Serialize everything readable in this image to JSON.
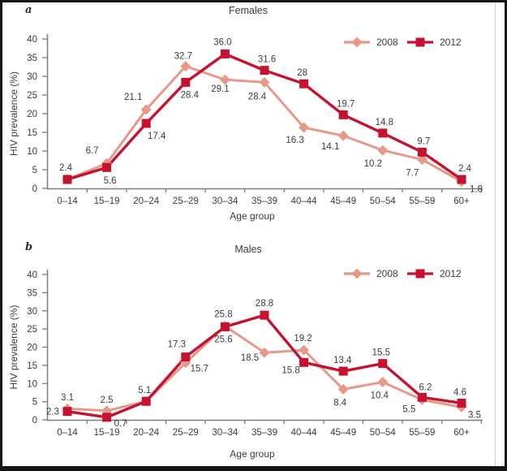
{
  "styles": {
    "background": "#ffffff",
    "frame_border_color": "#151515",
    "axis_color": "#7d7d7d",
    "text_color": "#3d3d3d",
    "series_2008_color": "#e79989",
    "series_2012_color": "#c41230"
  },
  "chart_data": [
    {
      "type": "line",
      "panel_letter": "a",
      "title": "Females",
      "xlabel": "Age group",
      "ylabel": "HIV prevalence (%)",
      "ylim": [
        0,
        40
      ],
      "ytick_step": 5,
      "grid": false,
      "legend_position": "top-right",
      "categories": [
        "0–14",
        "15–19",
        "20–24",
        "25–29",
        "30–34",
        "35–39",
        "40–44",
        "45–49",
        "50–54",
        "55–59",
        "60+"
      ],
      "series": [
        {
          "name": "2008",
          "marker": "diamond",
          "color": "#e79989",
          "values": [
            2.4,
            6.7,
            21.1,
            32.7,
            29.1,
            28.4,
            16.3,
            14.1,
            10.2,
            7.7,
            1.8
          ],
          "point_labels": [
            {
              "t": "2.4",
              "dx": -2,
              "dy": -15
            },
            {
              "t": "6.7",
              "dx": -18,
              "dy": -16
            },
            {
              "t": "21.1",
              "dx": -16,
              "dy": -16
            },
            {
              "t": "32.7",
              "dx": -3,
              "dy": -13
            },
            {
              "t": "29.1",
              "dx": -6,
              "dy": 11
            },
            {
              "t": "28.4",
              "dx": -9,
              "dy": 17
            },
            {
              "t": "16.3",
              "dx": -11,
              "dy": 15
            },
            {
              "t": "14.1",
              "dx": -16,
              "dy": 13
            },
            {
              "t": "10.2",
              "dx": -12,
              "dy": 16
            },
            {
              "t": "7.7",
              "dx": -12,
              "dy": 16
            },
            {
              "t": "1.8",
              "dx": 18,
              "dy": 9
            }
          ]
        },
        {
          "name": "2012",
          "marker": "square",
          "color": "#c41230",
          "values": [
            2.4,
            5.6,
            17.4,
            28.4,
            36.0,
            31.6,
            28,
            19.7,
            14.8,
            9.7,
            2.4
          ],
          "point_labels": [
            null,
            {
              "t": "5.6",
              "dx": 4,
              "dy": 16
            },
            {
              "t": "17.4",
              "dx": 13,
              "dy": 15
            },
            {
              "t": "28.4",
              "dx": 5,
              "dy": 15
            },
            {
              "t": "36.0",
              "dx": -3,
              "dy": -15
            },
            {
              "t": "31.6",
              "dx": 3,
              "dy": -14
            },
            {
              "t": "28",
              "dx": -2,
              "dy": -14
            },
            {
              "t": "19.7",
              "dx": 3,
              "dy": -14
            },
            {
              "t": "14.8",
              "dx": 2,
              "dy": -14
            },
            {
              "t": "9.7",
              "dx": 2,
              "dy": -14
            },
            {
              "t": "2.4",
              "dx": 4,
              "dy": -14
            }
          ]
        }
      ]
    },
    {
      "type": "line",
      "panel_letter": "b",
      "title": "Males",
      "xlabel": "Age group",
      "ylabel": "HIV prevalence (%)",
      "ylim": [
        0,
        40
      ],
      "ytick_step": 5,
      "grid": false,
      "legend_position": "top-right",
      "categories": [
        "0–14",
        "15–19",
        "20–24",
        "25–29",
        "30–34",
        "35–39",
        "40–44",
        "45–49",
        "50–54",
        "55–59",
        "60+"
      ],
      "series": [
        {
          "name": "2008",
          "marker": "diamond",
          "color": "#e79989",
          "values": [
            3.1,
            2.5,
            5.1,
            15.7,
            25.8,
            18.5,
            19.2,
            8.4,
            10.4,
            5.5,
            3.5
          ],
          "point_labels": [
            {
              "t": "3.1",
              "dx": 0,
              "dy": -14
            },
            {
              "t": "2.5",
              "dx": 0,
              "dy": -14
            },
            {
              "t": "5.1",
              "dx": -2,
              "dy": -14
            },
            {
              "t": "15.7",
              "dx": 17,
              "dy": 7
            },
            {
              "t": "25.8",
              "dx": -2,
              "dy": -15
            },
            {
              "t": "18.5",
              "dx": -18,
              "dy": 6
            },
            {
              "t": "19.2",
              "dx": -1,
              "dy": -15
            },
            {
              "t": "8.4",
              "dx": -4,
              "dy": 16
            },
            {
              "t": "10.4",
              "dx": -4,
              "dy": 16
            },
            {
              "t": "5.5",
              "dx": -16,
              "dy": 11
            },
            {
              "t": "3.5",
              "dx": 16,
              "dy": 9
            }
          ]
        },
        {
          "name": "2012",
          "marker": "square",
          "color": "#c41230",
          "values": [
            2.3,
            0.7,
            5.1,
            17.3,
            25.6,
            28.8,
            15.8,
            13.4,
            15.5,
            6.2,
            4.6
          ],
          "point_labels": [
            {
              "t": "2.3",
              "dx": -18,
              "dy": 0
            },
            {
              "t": "0.7",
              "dx": 17,
              "dy": 7
            },
            null,
            {
              "t": "17.3",
              "dx": -11,
              "dy": -16
            },
            {
              "t": "25.6",
              "dx": -2,
              "dy": 15
            },
            {
              "t": "28.8",
              "dx": 0,
              "dy": -15
            },
            {
              "t": "15.8",
              "dx": -16,
              "dy": 9
            },
            {
              "t": "13.4",
              "dx": -1,
              "dy": -14
            },
            {
              "t": "15.5",
              "dx": -2,
              "dy": -14
            },
            {
              "t": "6.2",
              "dx": 4,
              "dy": -13
            },
            {
              "t": "4.6",
              "dx": -2,
              "dy": -14
            }
          ]
        }
      ]
    }
  ]
}
